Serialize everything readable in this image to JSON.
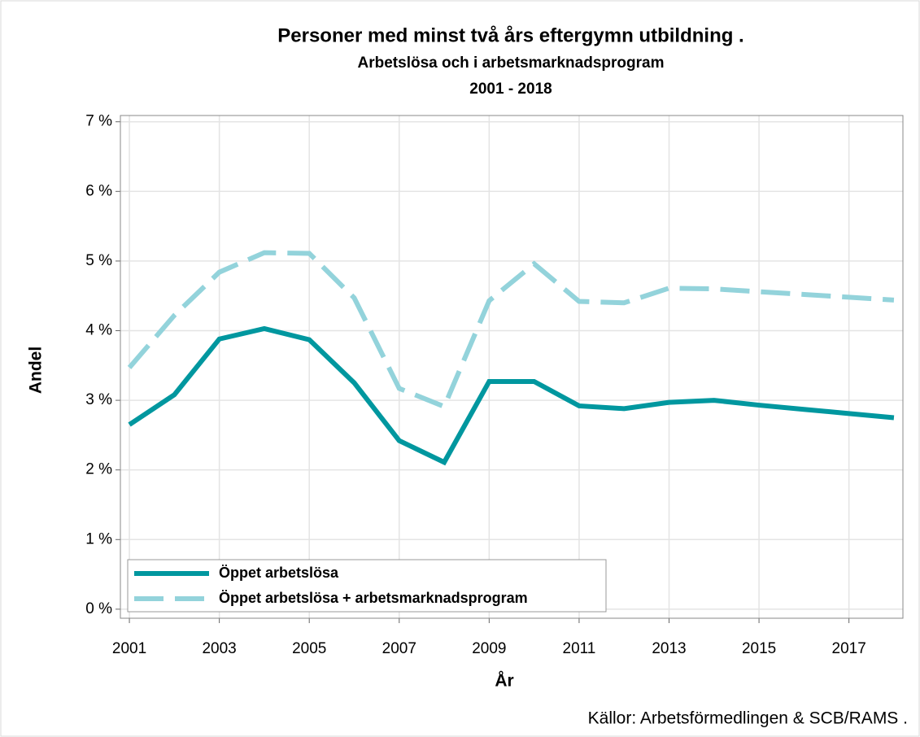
{
  "chart_data": {
    "type": "line",
    "title": "Personer med minst två års eftergymn utbildning .",
    "subtitle": [
      "Arbetslösa och i arbetsmarknadsprogram",
      "2001 - 2018"
    ],
    "x_label": "År",
    "y_label": "Andel",
    "source": "Källor: Arbetsförmedlingen & SCB/RAMS .",
    "x": [
      2001,
      2002,
      2003,
      2004,
      2005,
      2006,
      2007,
      2008,
      2009,
      2010,
      2011,
      2012,
      2013,
      2014,
      2015,
      2016,
      2017,
      2018
    ],
    "series": [
      {
        "name": "Öppet arbetslösa",
        "color": "#00979f",
        "dash": false,
        "values": [
          2.65,
          3.08,
          3.88,
          4.03,
          3.87,
          3.25,
          2.42,
          2.11,
          3.27,
          3.27,
          2.92,
          2.88,
          2.97,
          3.0,
          2.93,
          2.87,
          2.81,
          2.75
        ]
      },
      {
        "name": "Öppet arbetslösa + arbetsmarknadsprogram",
        "color": "#93d3db",
        "dash": true,
        "values": [
          3.47,
          4.22,
          4.84,
          5.12,
          5.11,
          4.47,
          3.17,
          2.91,
          4.43,
          4.96,
          4.42,
          4.4,
          4.61,
          4.6,
          4.56,
          4.52,
          4.48,
          4.44
        ]
      }
    ],
    "xlim": [
      2000.8,
      2018.2
    ],
    "xticks": [
      2001,
      2003,
      2005,
      2007,
      2009,
      2011,
      2013,
      2015,
      2017
    ],
    "ylim": [
      -0.13,
      7.09
    ],
    "yticks": [
      {
        "value": 0,
        "label": "0 %"
      },
      {
        "value": 1,
        "label": "1 %"
      },
      {
        "value": 2,
        "label": "2 %"
      },
      {
        "value": 3,
        "label": "3 %"
      },
      {
        "value": 4,
        "label": "4 %"
      },
      {
        "value": 5,
        "label": "5 %"
      },
      {
        "value": 6,
        "label": "6 %"
      },
      {
        "value": 7,
        "label": "7 %"
      }
    ],
    "grid": true,
    "legend": "lower left"
  }
}
